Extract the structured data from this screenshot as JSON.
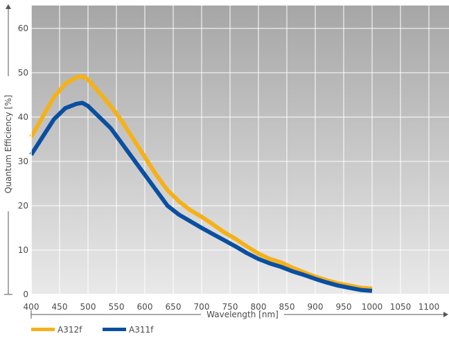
{
  "chart_data": {
    "type": "line",
    "xlabel": "Wavelength [nm]",
    "ylabel": "Quantum Efficiency [%]",
    "xlim": [
      400,
      1150
    ],
    "ylim": [
      0,
      65
    ],
    "x_ticks": [
      "400",
      "450",
      "500",
      "550",
      "600",
      "650",
      "700",
      "750",
      "800",
      "850",
      "900",
      "950",
      "1000",
      "1050",
      "1100"
    ],
    "y_ticks": [
      "0",
      "10",
      "20",
      "30",
      "40",
      "50",
      "60"
    ],
    "grid": true,
    "legend_position": "bottom-left",
    "series": [
      {
        "name": "A312f",
        "color": "#f5b11a",
        "x": [
          400,
          420,
          440,
          460,
          480,
          490,
          500,
          520,
          540,
          560,
          580,
          600,
          620,
          640,
          660,
          680,
          700,
          720,
          740,
          760,
          780,
          800,
          820,
          840,
          860,
          880,
          900,
          920,
          940,
          960,
          980,
          1000
        ],
        "y": [
          35.5,
          40,
          44.5,
          47.5,
          49,
          49.2,
          48.5,
          45.5,
          42.5,
          39,
          35,
          31,
          27,
          23.5,
          21,
          19,
          17.5,
          15.8,
          14,
          12.5,
          10.8,
          9.2,
          8,
          7.2,
          6,
          5,
          4,
          3.2,
          2.5,
          2,
          1.5,
          1.3
        ]
      },
      {
        "name": "A311f",
        "color": "#0a4fa0",
        "x": [
          400,
          420,
          440,
          460,
          480,
          490,
          500,
          520,
          540,
          560,
          580,
          600,
          620,
          640,
          660,
          680,
          700,
          720,
          740,
          760,
          780,
          800,
          820,
          840,
          860,
          880,
          900,
          920,
          940,
          960,
          980,
          1000
        ],
        "y": [
          31.5,
          35.5,
          39.5,
          42,
          43,
          43.2,
          42.5,
          40,
          37.5,
          34,
          30.5,
          27,
          23.5,
          20,
          18,
          16.5,
          15,
          13.6,
          12.2,
          10.8,
          9.3,
          8,
          7,
          6.2,
          5.2,
          4.4,
          3.5,
          2.7,
          2,
          1.5,
          1,
          0.8
        ]
      }
    ]
  }
}
